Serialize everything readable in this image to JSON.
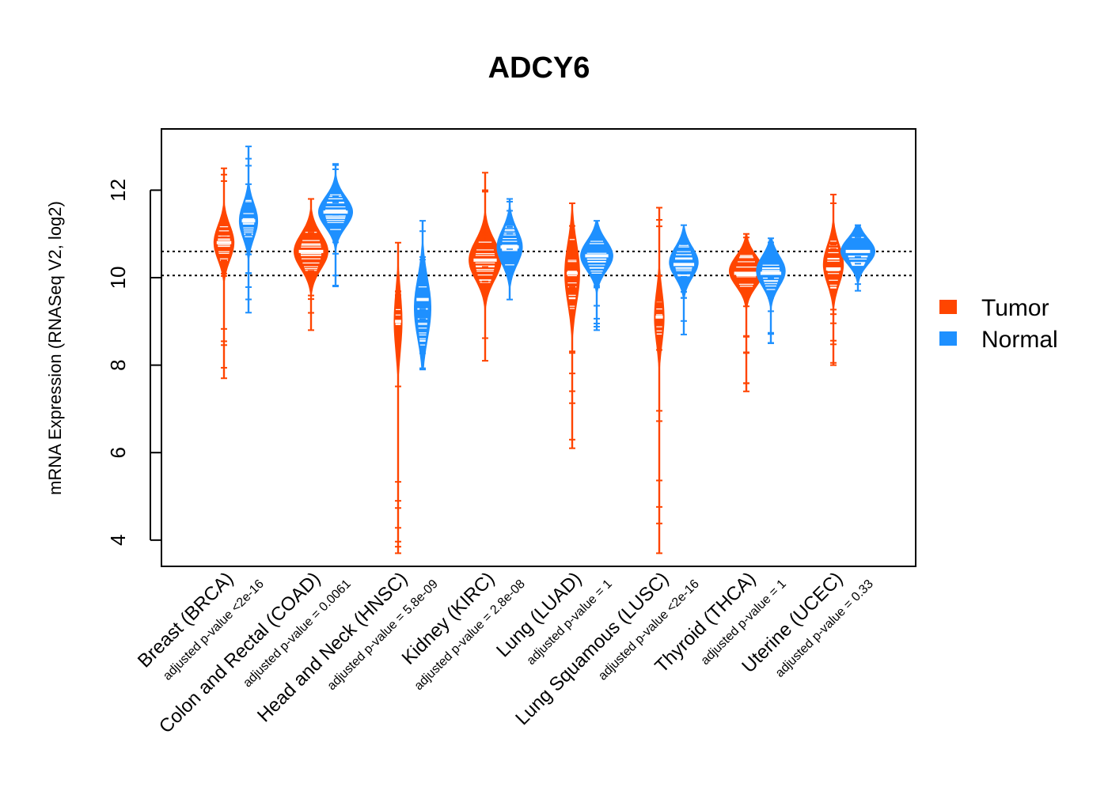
{
  "chart_data": {
    "type": "violin",
    "title": "ADCY6",
    "ylabel": "mRNA Expression (RNASeq V2, log2)",
    "xlabel": "",
    "ylim": [
      3.4,
      13.4
    ],
    "yticks": [
      4,
      6,
      8,
      10,
      12
    ],
    "reference_lines": [
      10.05,
      10.6
    ],
    "reference_line_style": "dotted",
    "legend": {
      "position": "right",
      "entries": [
        {
          "label": "Tumor",
          "color": "#ff4500"
        },
        {
          "label": "Normal",
          "color": "#1e90ff"
        }
      ]
    },
    "categories": [
      {
        "label": "Breast (BRCA)",
        "pvalue": "adjusted p-value <2e-16",
        "tumor": {
          "min": 7.7,
          "max": 12.5,
          "median": 10.8,
          "center": 10.8,
          "spread": 0.4,
          "width": 0.6
        },
        "normal": {
          "min": 9.2,
          "max": 13.0,
          "median": 11.3,
          "center": 11.3,
          "spread": 0.4,
          "width": 0.55
        }
      },
      {
        "label": "Colon and Rectal (COAD)",
        "pvalue": "adjusted p-value = 0.0061",
        "tumor": {
          "min": 8.8,
          "max": 11.8,
          "median": 10.6,
          "center": 10.6,
          "spread": 0.4,
          "width": 1.0
        },
        "normal": {
          "min": 9.8,
          "max": 12.6,
          "median": 11.5,
          "center": 11.5,
          "spread": 0.35,
          "width": 1.0
        }
      },
      {
        "label": "Head and Neck (HNSC)",
        "pvalue": "adjusted p-value = 5.8e-09",
        "tumor": {
          "min": 3.7,
          "max": 10.8,
          "median": 9.0,
          "center": 9.0,
          "spread": 0.7,
          "width": 0.25
        },
        "normal": {
          "min": 7.9,
          "max": 11.3,
          "median": 9.5,
          "center": 9.3,
          "spread": 0.7,
          "width": 0.5
        }
      },
      {
        "label": "Kidney (KIRC)",
        "pvalue": "adjusted p-value = 2.8e-08",
        "tumor": {
          "min": 8.1,
          "max": 12.4,
          "median": 10.4,
          "center": 10.4,
          "spread": 0.45,
          "width": 0.95
        },
        "normal": {
          "min": 9.5,
          "max": 11.8,
          "median": 10.7,
          "center": 10.7,
          "spread": 0.4,
          "width": 0.75
        }
      },
      {
        "label": "Lung (LUAD)",
        "pvalue": "adjusted p-value = 1",
        "tumor": {
          "min": 6.1,
          "max": 11.7,
          "median": 10.1,
          "center": 10.1,
          "spread": 0.7,
          "width": 0.45
        },
        "normal": {
          "min": 8.8,
          "max": 11.3,
          "median": 10.5,
          "center": 10.5,
          "spread": 0.35,
          "width": 0.95
        }
      },
      {
        "label": "Lung Squamous (LUSC)",
        "pvalue": "adjusted p-value <2e-16",
        "tumor": {
          "min": 3.7,
          "max": 11.6,
          "median": 9.1,
          "center": 9.1,
          "spread": 0.6,
          "width": 0.3
        },
        "normal": {
          "min": 8.7,
          "max": 11.2,
          "median": 10.3,
          "center": 10.35,
          "spread": 0.35,
          "width": 0.85
        }
      },
      {
        "label": "Thyroid (THCA)",
        "pvalue": "adjusted p-value = 1",
        "tumor": {
          "min": 7.4,
          "max": 11.0,
          "median": 10.1,
          "center": 10.15,
          "spread": 0.35,
          "width": 1.0
        },
        "normal": {
          "min": 8.5,
          "max": 10.9,
          "median": 10.1,
          "center": 10.15,
          "spread": 0.35,
          "width": 0.85
        }
      },
      {
        "label": "Uterine (UCEC)",
        "pvalue": "adjusted p-value = 0.33",
        "tumor": {
          "min": 8.0,
          "max": 11.9,
          "median": 10.2,
          "center": 10.3,
          "spread": 0.45,
          "width": 0.6
        },
        "normal": {
          "min": 9.7,
          "max": 11.2,
          "median": 10.6,
          "center": 10.6,
          "spread": 0.3,
          "width": 1.0
        }
      }
    ]
  }
}
